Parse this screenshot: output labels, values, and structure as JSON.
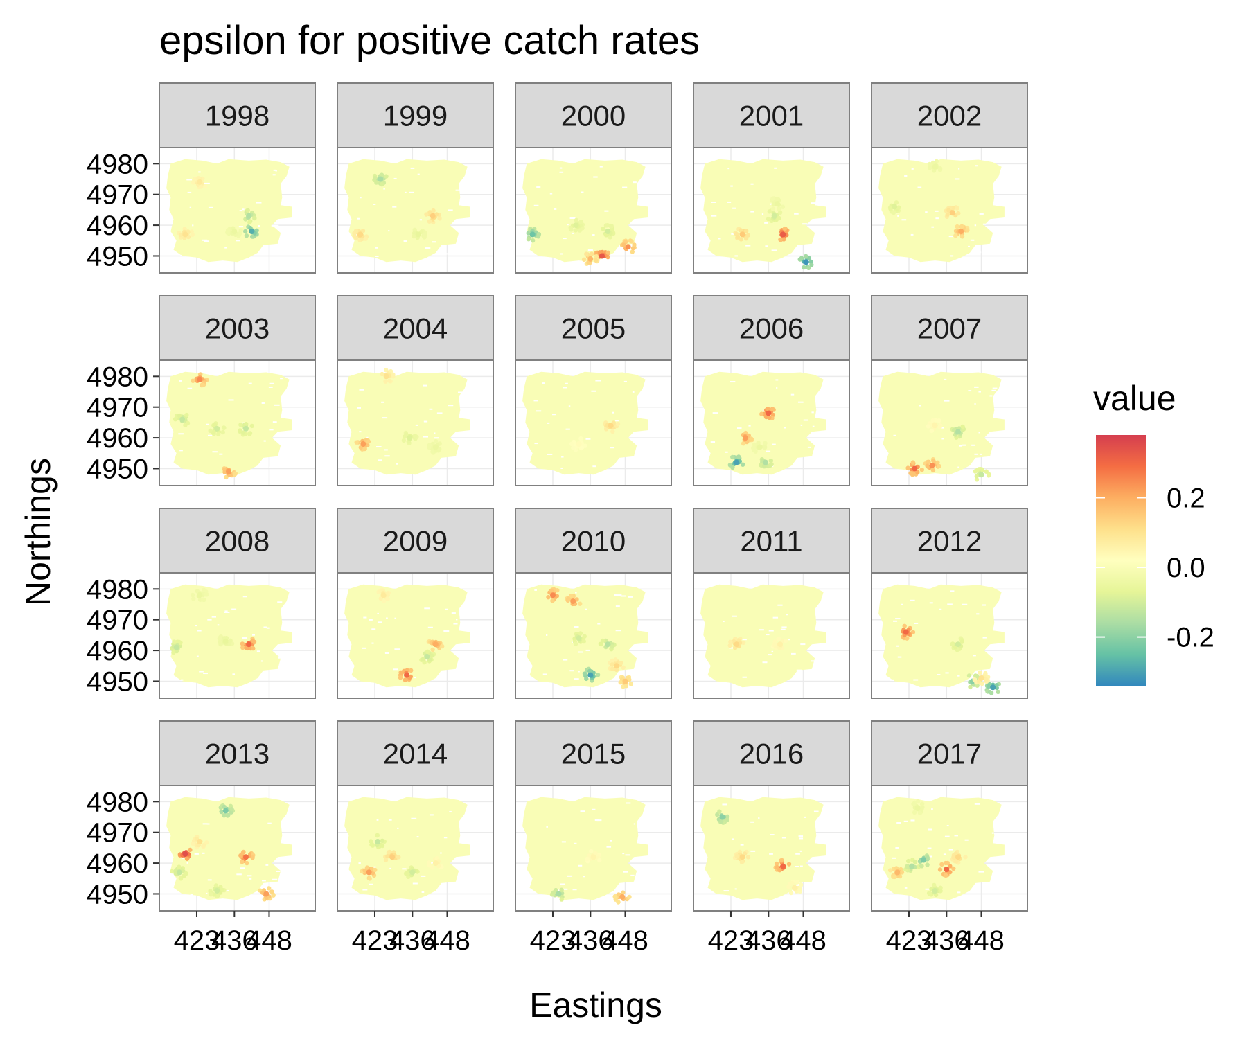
{
  "chart_data": {
    "type": "scatter",
    "title": "epsilon for positive catch rates",
    "xlabel": "Eastings",
    "ylabel": "Northings",
    "facets": [
      "1998",
      "1999",
      "2000",
      "2001",
      "2002",
      "2003",
      "2004",
      "2005",
      "2006",
      "2007",
      "2008",
      "2009",
      "2010",
      "2011",
      "2012",
      "2013",
      "2014",
      "2015",
      "2016",
      "2017"
    ],
    "facet_layout": {
      "ncol": 5,
      "nrow": 4
    },
    "xlim": [
      412,
      462
    ],
    "ylim": [
      4946.5,
      4983
    ],
    "x_ticks": [
      423,
      436,
      448
    ],
    "x_tick_labels": [
      "423",
      "436",
      "448"
    ],
    "y_ticks": [
      4950,
      4960,
      4970,
      4980
    ],
    "y_tick_labels": [
      "4950",
      "4960",
      "4970",
      "4980"
    ],
    "domain_extent": {
      "x": [
        413,
        457
      ],
      "y": [
        4947.5,
        4981.5
      ]
    },
    "background_value": 0.0,
    "grid": true,
    "legend": {
      "title": "value",
      "position": "right",
      "range": [
        -0.34,
        0.38
      ],
      "breaks": [
        0.2,
        0.0,
        -0.2
      ],
      "break_labels": [
        "0.2",
        "0.0",
        "-0.2"
      ],
      "palette": [
        "#3288BD",
        "#66C2A5",
        "#ABDDA4",
        "#E6F598",
        "#FFFFBF",
        "#FEE08B",
        "#FDAE61",
        "#F46D43",
        "#D53E4F"
      ]
    },
    "hotspots": {
      "1998": [
        {
          "x": 424,
          "y": 4974,
          "v": 0.08
        },
        {
          "x": 441,
          "y": 4963,
          "v": -0.15
        },
        {
          "x": 442,
          "y": 4958,
          "v": -0.28
        },
        {
          "x": 419,
          "y": 4957,
          "v": 0.1
        },
        {
          "x": 436,
          "y": 4958,
          "v": -0.05
        }
      ],
      "1999": [
        {
          "x": 425,
          "y": 4975,
          "v": -0.16
        },
        {
          "x": 443,
          "y": 4963,
          "v": 0.14
        },
        {
          "x": 418,
          "y": 4957,
          "v": 0.12
        },
        {
          "x": 438,
          "y": 4957,
          "v": -0.06
        }
      ],
      "2000": [
        {
          "x": 440,
          "y": 4950,
          "v": 0.33
        },
        {
          "x": 449,
          "y": 4953,
          "v": 0.24
        },
        {
          "x": 416,
          "y": 4957,
          "v": -0.24
        },
        {
          "x": 442,
          "y": 4958,
          "v": -0.1
        },
        {
          "x": 431,
          "y": 4960,
          "v": -0.08
        },
        {
          "x": 436,
          "y": 4949,
          "v": 0.18
        }
      ],
      "2001": [
        {
          "x": 441,
          "y": 4957,
          "v": 0.32
        },
        {
          "x": 438,
          "y": 4963,
          "v": -0.1
        },
        {
          "x": 449,
          "y": 4948,
          "v": -0.32
        },
        {
          "x": 427,
          "y": 4957,
          "v": 0.15
        },
        {
          "x": 439,
          "y": 4967,
          "v": -0.05
        }
      ],
      "2002": [
        {
          "x": 438,
          "y": 4964,
          "v": 0.14
        },
        {
          "x": 441,
          "y": 4958,
          "v": 0.2
        },
        {
          "x": 418,
          "y": 4966,
          "v": -0.08
        },
        {
          "x": 432,
          "y": 4979,
          "v": -0.05
        }
      ],
      "2003": [
        {
          "x": 424,
          "y": 4979,
          "v": 0.25
        },
        {
          "x": 418,
          "y": 4966,
          "v": -0.12
        },
        {
          "x": 430,
          "y": 4963,
          "v": -0.1
        },
        {
          "x": 440,
          "y": 4963,
          "v": -0.12
        },
        {
          "x": 434,
          "y": 4949,
          "v": 0.22
        }
      ],
      "2004": [
        {
          "x": 419,
          "y": 4958,
          "v": 0.22
        },
        {
          "x": 427,
          "y": 4980,
          "v": 0.1
        },
        {
          "x": 435,
          "y": 4960,
          "v": -0.08
        },
        {
          "x": 444,
          "y": 4957,
          "v": -0.05
        }
      ],
      "2005": [
        {
          "x": 443,
          "y": 4964,
          "v": 0.12
        },
        {
          "x": 432,
          "y": 4958,
          "v": 0.03
        }
      ],
      "2006": [
        {
          "x": 436,
          "y": 4968,
          "v": 0.3
        },
        {
          "x": 428,
          "y": 4960,
          "v": 0.22
        },
        {
          "x": 425,
          "y": 4952,
          "v": -0.3
        },
        {
          "x": 435,
          "y": 4952,
          "v": -0.15
        },
        {
          "x": 433,
          "y": 4957,
          "v": -0.05
        }
      ],
      "2007": [
        {
          "x": 425,
          "y": 4950,
          "v": 0.3
        },
        {
          "x": 431,
          "y": 4951,
          "v": 0.24
        },
        {
          "x": 440,
          "y": 4962,
          "v": -0.15
        },
        {
          "x": 432,
          "y": 4964,
          "v": 0.05
        },
        {
          "x": 448,
          "y": 4948,
          "v": -0.12
        }
      ],
      "2008": [
        {
          "x": 441,
          "y": 4962,
          "v": 0.3
        },
        {
          "x": 416,
          "y": 4961,
          "v": -0.12
        },
        {
          "x": 424,
          "y": 4978,
          "v": -0.05
        },
        {
          "x": 433,
          "y": 4963,
          "v": -0.06
        }
      ],
      "2009": [
        {
          "x": 434,
          "y": 4952,
          "v": 0.3
        },
        {
          "x": 444,
          "y": 4962,
          "v": 0.2
        },
        {
          "x": 441,
          "y": 4958,
          "v": -0.12
        },
        {
          "x": 426,
          "y": 4978,
          "v": 0.08
        }
      ],
      "2010": [
        {
          "x": 423,
          "y": 4978,
          "v": 0.25
        },
        {
          "x": 430,
          "y": 4976,
          "v": 0.22
        },
        {
          "x": 436,
          "y": 4952,
          "v": -0.3
        },
        {
          "x": 442,
          "y": 4962,
          "v": -0.14
        },
        {
          "x": 432,
          "y": 4964,
          "v": -0.1
        },
        {
          "x": 445,
          "y": 4955,
          "v": 0.12
        },
        {
          "x": 448,
          "y": 4950,
          "v": 0.15
        }
      ],
      "2011": [
        {
          "x": 425,
          "y": 4962,
          "v": 0.12
        },
        {
          "x": 440,
          "y": 4962,
          "v": 0.06
        }
      ],
      "2012": [
        {
          "x": 422,
          "y": 4966,
          "v": 0.3
        },
        {
          "x": 440,
          "y": 4962,
          "v": -0.1
        },
        {
          "x": 445,
          "y": 4950,
          "v": -0.2
        },
        {
          "x": 452,
          "y": 4948,
          "v": -0.3
        },
        {
          "x": 448,
          "y": 4951,
          "v": 0.1
        }
      ],
      "2013": [
        {
          "x": 419,
          "y": 4963,
          "v": 0.35
        },
        {
          "x": 433,
          "y": 4977,
          "v": -0.22
        },
        {
          "x": 440,
          "y": 4962,
          "v": 0.28
        },
        {
          "x": 417,
          "y": 4957,
          "v": -0.12
        },
        {
          "x": 430,
          "y": 4951,
          "v": -0.1
        },
        {
          "x": 447,
          "y": 4950,
          "v": 0.22
        },
        {
          "x": 424,
          "y": 4967,
          "v": 0.1
        }
      ],
      "2014": [
        {
          "x": 421,
          "y": 4957,
          "v": 0.22
        },
        {
          "x": 429,
          "y": 4962,
          "v": 0.14
        },
        {
          "x": 424,
          "y": 4967,
          "v": -0.12
        },
        {
          "x": 436,
          "y": 4957,
          "v": -0.1
        },
        {
          "x": 444,
          "y": 4960,
          "v": 0.06
        }
      ],
      "2015": [
        {
          "x": 425,
          "y": 4950,
          "v": -0.16
        },
        {
          "x": 447,
          "y": 4949,
          "v": 0.2
        },
        {
          "x": 437,
          "y": 4962,
          "v": 0.05
        }
      ],
      "2016": [
        {
          "x": 441,
          "y": 4959,
          "v": 0.3
        },
        {
          "x": 420,
          "y": 4975,
          "v": -0.2
        },
        {
          "x": 427,
          "y": 4962,
          "v": 0.12
        },
        {
          "x": 445,
          "y": 4952,
          "v": 0.06
        }
      ],
      "2017": [
        {
          "x": 436,
          "y": 4958,
          "v": 0.3
        },
        {
          "x": 424,
          "y": 4959,
          "v": -0.15
        },
        {
          "x": 428,
          "y": 4961,
          "v": -0.22
        },
        {
          "x": 432,
          "y": 4951,
          "v": -0.1
        },
        {
          "x": 419,
          "y": 4957,
          "v": 0.18
        },
        {
          "x": 440,
          "y": 4962,
          "v": 0.12
        },
        {
          "x": 426,
          "y": 4978,
          "v": -0.05
        }
      ]
    }
  }
}
